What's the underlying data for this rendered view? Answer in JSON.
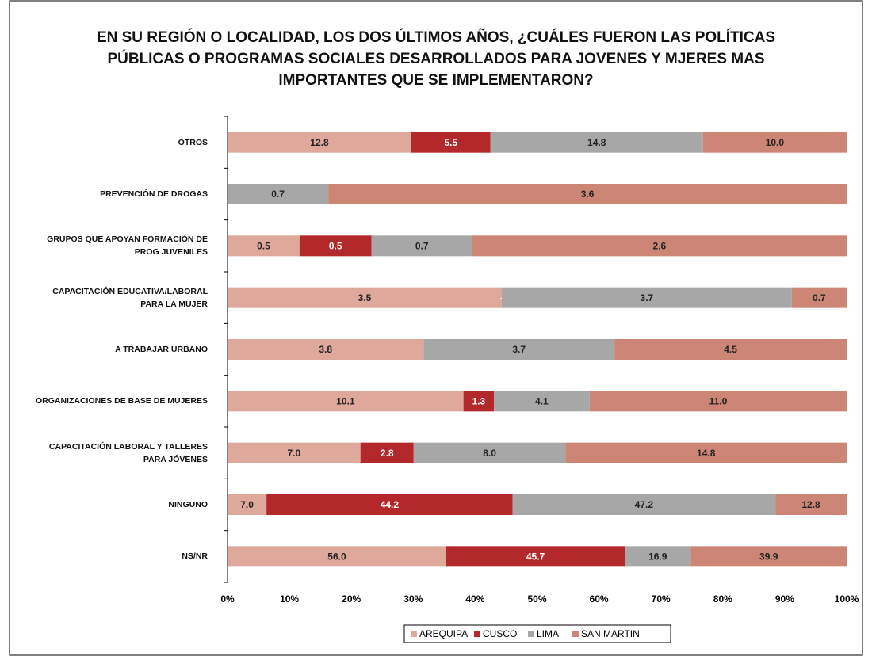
{
  "chart_data": {
    "type": "bar_stacked_percent",
    "title": "EN SU REGIÓN O LOCALIDAD, LOS DOS ÚLTIMOS AÑOS, ¿CUÁLES FUERON LAS POLÍTICAS PÚBLICAS O PROGRAMAS SOCIALES DESARROLLADOS PARA JOVENES Y MJERES MAS IMPORTANTES QUE SE IMPLEMENTARON?",
    "categories": [
      "OTROS",
      "PREVENCIÓN DE DROGAS",
      "GRUPOS QUE APOYAN FORMACIÓN DE PROG JUVENILES",
      "CAPACITACIÓN EDUCATIVA/LABORAL PARA LA MUJER",
      "A TRABAJAR URBANO",
      "ORGANIZACIONES DE BASE DE MUJERES",
      "CAPACITACIÓN LABORAL Y TALLERES PARA JÓVENES",
      "NINGUNO",
      "NS/NR"
    ],
    "series": [
      {
        "name": "AREQUIPA",
        "color": "#dea99b",
        "values": [
          12.8,
          null,
          0.5,
          3.5,
          3.8,
          10.1,
          7.0,
          7.0,
          56.0
        ],
        "value_labels": [
          "12.8",
          null,
          "0.5",
          "3.5",
          "3.8",
          "10.1",
          "7.0",
          "7.0",
          "56.0"
        ]
      },
      {
        "name": "CUSCO",
        "color": "#b3282a",
        "values": [
          5.5,
          null,
          0.5,
          0,
          null,
          1.3,
          2.8,
          44.2,
          45.7
        ],
        "value_labels": [
          "5.5",
          null,
          "0.5",
          "-",
          null,
          "1.3",
          "2.8",
          "44.2",
          "45.7"
        ]
      },
      {
        "name": "LIMA",
        "color": "#a7a7a7",
        "values": [
          14.8,
          0.7,
          0.7,
          3.7,
          3.7,
          4.1,
          8.0,
          47.2,
          16.9
        ],
        "value_labels": [
          "14.8",
          "0.7",
          "0.7",
          "3.7",
          "3.7",
          "4.1",
          "8.0",
          "47.2",
          "16.9"
        ]
      },
      {
        "name": "SAN MARTIN",
        "color": "#cd8676",
        "values": [
          10.0,
          3.6,
          2.6,
          0.7,
          4.5,
          11.0,
          14.8,
          12.8,
          39.9
        ],
        "value_labels": [
          "10.0",
          "3.6",
          "2.6",
          "0.7",
          "4.5",
          "11.0",
          "14.8",
          "12.8",
          "39.9"
        ]
      }
    ],
    "xlim": [
      0,
      100
    ],
    "xticks": [
      {
        "value": 0,
        "label": "0%"
      },
      {
        "value": 10,
        "label": "10%"
      },
      {
        "value": 20,
        "label": "20%"
      },
      {
        "value": 30,
        "label": "30%"
      },
      {
        "value": 40,
        "label": "40%"
      },
      {
        "value": 50,
        "label": "50%"
      },
      {
        "value": 60,
        "label": "60%"
      },
      {
        "value": 70,
        "label": "70%"
      },
      {
        "value": 80,
        "label": "80%"
      },
      {
        "value": 90,
        "label": "90%"
      },
      {
        "value": 100,
        "label": "100%"
      }
    ],
    "legend": "bottom"
  }
}
